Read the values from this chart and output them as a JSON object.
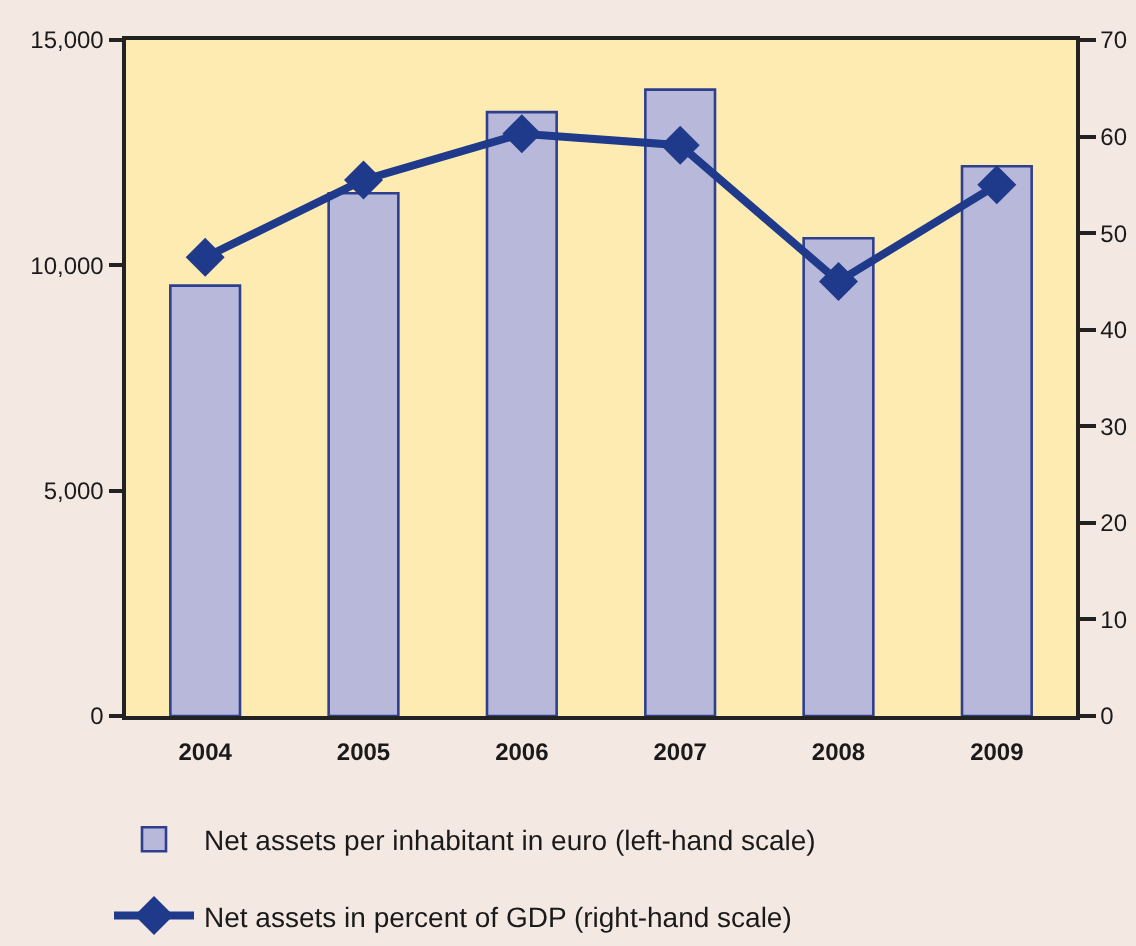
{
  "chart_data": {
    "type": "bar",
    "categories": [
      "2004",
      "2005",
      "2006",
      "2007",
      "2008",
      "2009"
    ],
    "series": [
      {
        "name": "Net assets per inhabitant in euro (left-hand scale)",
        "color": "#b8b8da",
        "values": [
          9550,
          11600,
          13400,
          13900,
          10600,
          12200
        ]
      },
      {
        "name": "Net assets in percent of GDP (right-hand scale)",
        "type": "line",
        "axis": "y2",
        "color": "#1f3a8a",
        "marker": "diamond",
        "values": [
          47.5,
          55.5,
          60.3,
          59.1,
          45.0,
          55.0
        ]
      }
    ],
    "ylim": [
      0,
      15000
    ],
    "yticks": [
      0,
      {
        "value": 5000,
        "label": "5,000"
      },
      {
        "value": 10000,
        "label": "10,000"
      },
      {
        "value": 15000,
        "label": "15,000"
      }
    ],
    "y2lim": [
      0,
      70
    ],
    "y2ticks": [
      0,
      10,
      20,
      30,
      40,
      50,
      60,
      70
    ],
    "grid": false,
    "legend": "bottom"
  }
}
